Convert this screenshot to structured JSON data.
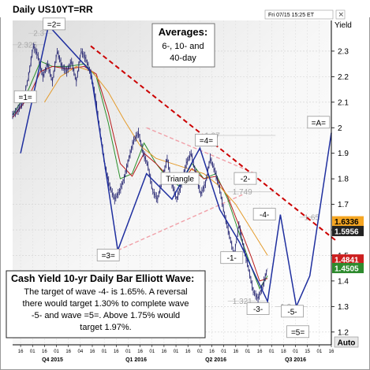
{
  "header": {
    "title": "Daily US10YT=RR",
    "timestamp": "Fri 07/15 15:25 ET",
    "close_icon": "close-icon"
  },
  "averages_box": {
    "title": "Averages:",
    "lines": [
      "6-, 10- and",
      "40-day"
    ]
  },
  "callout": {
    "title": "Cash Yield 10-yr Daily Bar Elliott Wave:",
    "lines": [
      "The target of wave -4- is 1.65%. A reversal",
      "there would target 1.30% to complete wave",
      "-5- and wave =5=. Above 1.75% would",
      "target 1.97%."
    ]
  },
  "auto_button": "Auto",
  "chart_data": {
    "type": "line",
    "title": "Daily US10YT=RR",
    "ylabel": "Yield",
    "ylim": [
      1.15,
      2.42
    ],
    "y_ticks": [
      1.2,
      1.3,
      1.4,
      1.5,
      1.6,
      1.7,
      1.8,
      1.9,
      2,
      2.1,
      2.2,
      2.3
    ],
    "y_tick_labels": [
      "1.2",
      "1.3",
      "1.4",
      "1.5",
      "1.6",
      "1.7",
      "1.8",
      "1.9",
      "2",
      "2.1",
      "2.2",
      "2.3"
    ],
    "x_index_range": [
      0,
      40
    ],
    "x_ticks": [
      {
        "i": 1,
        "label": "16"
      },
      {
        "i": 2.5,
        "label": "01"
      },
      {
        "i": 4,
        "label": "16"
      },
      {
        "i": 5.5,
        "label": "01"
      },
      {
        "i": 7,
        "label": "16"
      },
      {
        "i": 8.5,
        "label": "04"
      },
      {
        "i": 10,
        "label": "16"
      },
      {
        "i": 11.5,
        "label": "01"
      },
      {
        "i": 13,
        "label": "16"
      },
      {
        "i": 14.5,
        "label": "01"
      },
      {
        "i": 16,
        "label": "16"
      },
      {
        "i": 17.5,
        "label": "01"
      },
      {
        "i": 19,
        "label": "16"
      },
      {
        "i": 20.5,
        "label": "01"
      },
      {
        "i": 22,
        "label": "16"
      },
      {
        "i": 23.5,
        "label": "02"
      },
      {
        "i": 25,
        "label": "16"
      },
      {
        "i": 26.5,
        "label": "01"
      },
      {
        "i": 28,
        "label": "16"
      },
      {
        "i": 29.5,
        "label": "01"
      },
      {
        "i": 31,
        "label": "16"
      },
      {
        "i": 32.5,
        "label": "01"
      },
      {
        "i": 34,
        "label": "18"
      },
      {
        "i": 35.5,
        "label": "01"
      },
      {
        "i": 37,
        "label": "15"
      },
      {
        "i": 38.5,
        "label": "01"
      },
      {
        "i": 40,
        "label": "16"
      }
    ],
    "periods": [
      {
        "i": 5,
        "label": "Q4 2015"
      },
      {
        "i": 15.5,
        "label": "Q1 2016"
      },
      {
        "i": 25.5,
        "label": "Q2 2016"
      },
      {
        "i": 35.5,
        "label": "Q3 2016"
      }
    ],
    "price": {
      "name": "Daily yield",
      "x": [
        0,
        0.7,
        1.3,
        2,
        2.6,
        3.2,
        3.8,
        4.4,
        5,
        5.6,
        6.2,
        6.8,
        7.4,
        8,
        8.6,
        9.2,
        9.8,
        10.4,
        11,
        11.6,
        12.2,
        12.8,
        13.4,
        14,
        14.6,
        15.2,
        15.8,
        16.4,
        17,
        17.6,
        18.2,
        18.8,
        19.4,
        20,
        20.6,
        21.2,
        21.8,
        22.4,
        23,
        23.6,
        24.2,
        24.8,
        25.4,
        26,
        26.6,
        27.2,
        27.8,
        28.4,
        29,
        29.6,
        30.2,
        30.8,
        31.4,
        32
      ],
      "y": [
        2.05,
        2.07,
        2.1,
        2.2,
        2.32,
        2.28,
        2.2,
        2.25,
        2.18,
        2.3,
        2.24,
        2.22,
        2.26,
        2.18,
        2.3,
        2.27,
        2.21,
        2.12,
        1.98,
        1.85,
        1.77,
        1.72,
        1.75,
        1.8,
        1.88,
        1.95,
        1.98,
        1.9,
        1.85,
        1.75,
        1.72,
        1.8,
        1.88,
        1.78,
        1.72,
        1.78,
        1.86,
        1.9,
        1.82,
        1.74,
        1.78,
        1.88,
        1.83,
        1.76,
        1.66,
        1.58,
        1.5,
        1.62,
        1.53,
        1.45,
        1.36,
        1.33,
        1.38,
        1.45
      ]
    },
    "averages": [
      {
        "name": "6-day",
        "color": "#2c8f2c",
        "x": [
          0,
          2,
          3.5,
          5,
          7,
          9,
          10.5,
          12,
          13.5,
          15,
          16.5,
          18,
          19.5,
          21,
          22.5,
          24,
          25.5,
          27,
          28.5,
          30,
          31,
          32
        ],
        "y": [
          2.05,
          2.15,
          2.26,
          2.24,
          2.24,
          2.25,
          2.2,
          2.02,
          1.8,
          1.82,
          1.94,
          1.86,
          1.8,
          1.77,
          1.86,
          1.8,
          1.82,
          1.72,
          1.58,
          1.45,
          1.37,
          1.42
        ]
      },
      {
        "name": "10-day",
        "color": "#b81c1c",
        "x": [
          0,
          2,
          3.5,
          5,
          7,
          9,
          10.5,
          12,
          13.5,
          15,
          16.5,
          18,
          19.5,
          21,
          22.5,
          24,
          25.5,
          27,
          28.5,
          30,
          31,
          32
        ],
        "y": [
          2.04,
          2.12,
          2.22,
          2.24,
          2.23,
          2.24,
          2.21,
          2.06,
          1.86,
          1.81,
          1.9,
          1.86,
          1.81,
          1.78,
          1.84,
          1.8,
          1.81,
          1.73,
          1.61,
          1.49,
          1.4,
          1.41
        ]
      },
      {
        "name": "40-day",
        "color": "#e49b2c",
        "x": [
          4,
          6,
          8,
          10,
          12,
          14,
          16,
          18,
          20,
          22,
          24,
          26,
          28,
          30,
          32
        ],
        "y": [
          2.1,
          2.2,
          2.24,
          2.22,
          2.14,
          2.03,
          1.93,
          1.88,
          1.86,
          1.84,
          1.82,
          1.77,
          1.7,
          1.6,
          1.5
        ]
      }
    ],
    "projection": {
      "name": "Projected path",
      "x": [
        1,
        4.5,
        9.8,
        13.2,
        16.8,
        20,
        23.5,
        26,
        28.5,
        32,
        33.6,
        35.6,
        37.3,
        40
      ],
      "y": [
        1.9,
        2.4,
        2.22,
        1.52,
        1.82,
        1.72,
        1.92,
        1.68,
        1.55,
        1.32,
        1.66,
        1.3,
        1.42,
        1.98
      ]
    },
    "resistance_line": {
      "x": [
        9.8,
        40.5
      ],
      "y": [
        2.32,
        1.56
      ]
    },
    "triangle_upper": {
      "x": [
        16.8,
        30.5
      ],
      "y": [
        2.0,
        1.82
      ]
    },
    "triangle_lower": {
      "x": [
        13.2,
        29
      ],
      "y": [
        1.52,
        1.74
      ]
    },
    "levels": [
      {
        "label": "1.97",
        "value": 1.97,
        "x1": 23.5,
        "x2": 33
      },
      {
        "label": "1.749",
        "value": 1.749,
        "x1": 27,
        "x2": 33
      },
      {
        "label": "1.321",
        "value": 1.321,
        "x1": 27,
        "x2": 32
      },
      {
        "label": "1.3",
        "value": 1.3,
        "x1": 33,
        "x2": 37
      },
      {
        "label": "2.325",
        "value": 2.325,
        "x1": 0,
        "x2": 4
      },
      {
        "label": "2.37",
        "value": 2.37,
        "x1": 2,
        "x2": 5
      },
      {
        "label": "1.65",
        "value": 1.65,
        "x1": 36,
        "x2": 38
      }
    ],
    "wave_labels": [
      {
        "label": "=1=",
        "i": 1.6,
        "y": 2.12
      },
      {
        "label": "=2=",
        "i": 5.2,
        "y": 2.405
      },
      {
        "label": "=3=",
        "i": 12,
        "y": 1.5
      },
      {
        "label": "=4=",
        "i": 24.3,
        "y": 1.95
      },
      {
        "label": "Triangle",
        "i": 21,
        "y": 1.8
      },
      {
        "label": "-2-",
        "i": 29.2,
        "y": 1.8
      },
      {
        "label": "-4-",
        "i": 31.6,
        "y": 1.66
      },
      {
        "label": "-1-",
        "i": 27.5,
        "y": 1.49
      },
      {
        "label": "-3-",
        "i": 30.8,
        "y": 1.29
      },
      {
        "label": "-5-",
        "i": 35.1,
        "y": 1.28
      },
      {
        "label": "=5=",
        "i": 35.8,
        "y": 1.2
      },
      {
        "label": "=A=",
        "i": 38.4,
        "y": 2.02
      }
    ],
    "price_labels": [
      {
        "label": "1.6336",
        "value": 1.6336,
        "bg": "#f5a623",
        "fg": "#000"
      },
      {
        "label": "1.5956",
        "value": 1.5956,
        "bg": "#222222",
        "fg": "#fff"
      },
      {
        "label": "1.4841",
        "value": 1.4841,
        "bg": "#cc1f1f",
        "fg": "#fff"
      },
      {
        "label": "1.4505",
        "value": 1.4505,
        "bg": "#2e8b2e",
        "fg": "#fff"
      }
    ]
  }
}
